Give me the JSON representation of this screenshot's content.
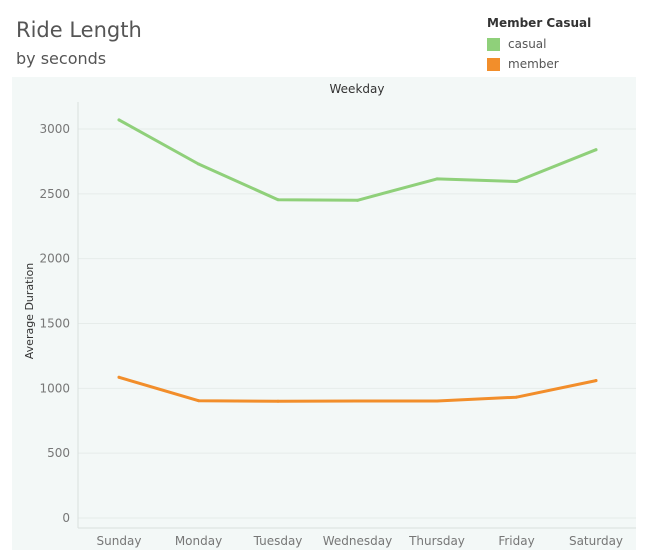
{
  "title": "Ride Length",
  "subtitle": "by seconds",
  "legend": {
    "title": "Member Casual",
    "items": [
      {
        "label": "casual",
        "color": "#8fd07a"
      },
      {
        "label": "member",
        "color": "#f28e2b"
      }
    ]
  },
  "chart_data": {
    "type": "line",
    "title": "Ride Length",
    "subtitle": "by seconds",
    "column_header": "Weekday",
    "xlabel": "",
    "ylabel": "Average Duration",
    "categories": [
      "Sunday",
      "Monday",
      "Tuesday",
      "Wednesday",
      "Thursday",
      "Friday",
      "Saturday"
    ],
    "yticks": [
      0,
      500,
      1000,
      1500,
      2000,
      2500,
      3000
    ],
    "ylim": [
      0,
      3200
    ],
    "grid": true,
    "legend_position": "top-right",
    "series": [
      {
        "name": "casual",
        "color": "#8fd07a",
        "values": [
          3070,
          2730,
          2455,
          2450,
          2615,
          2595,
          2840
        ]
      },
      {
        "name": "member",
        "color": "#f28e2b",
        "values": [
          1085,
          905,
          900,
          902,
          902,
          932,
          1060
        ]
      }
    ]
  }
}
